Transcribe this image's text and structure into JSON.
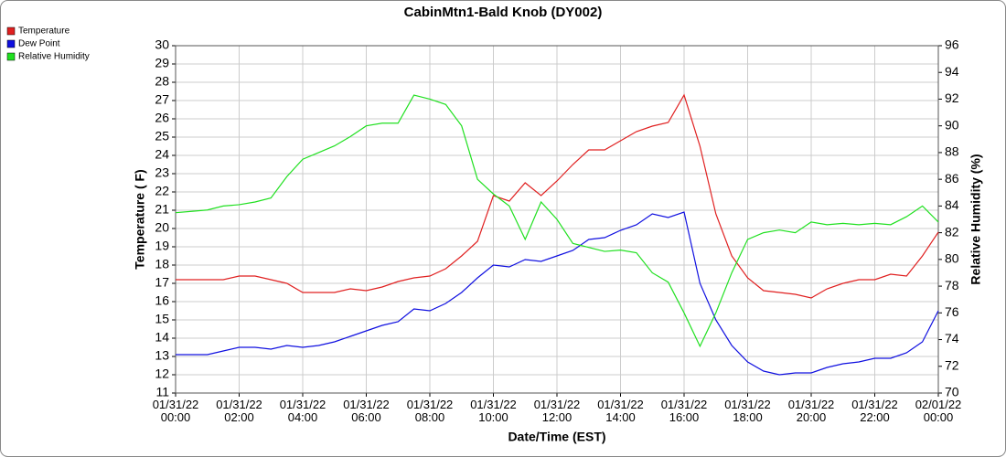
{
  "chart_data": {
    "type": "line",
    "title": "CabinMtn1-Bald Knob (DY002)",
    "x_label": "Date/Time (EST)",
    "y_label": "Temperature ( F)",
    "y2_label": "Relative Humidity (%)",
    "x": [
      0,
      0.5,
      1,
      1.5,
      2,
      2.5,
      3,
      3.5,
      4,
      4.5,
      5,
      5.5,
      6,
      6.5,
      7,
      7.5,
      8,
      8.5,
      9,
      9.5,
      10,
      10.5,
      11,
      11.5,
      12,
      12.5,
      13,
      13.5,
      14,
      14.5,
      15,
      15.5,
      16,
      16.5,
      17,
      17.5,
      18,
      18.5,
      19,
      19.5,
      20,
      20.5,
      21,
      21.5,
      22,
      22.5,
      23,
      23.5,
      24
    ],
    "series": [
      {
        "name": "Temperature",
        "color": "#e02020",
        "values": [
          17.2,
          17.2,
          17.2,
          17.2,
          17.4,
          17.4,
          17.2,
          17.0,
          16.5,
          16.5,
          16.5,
          16.7,
          16.6,
          16.8,
          17.1,
          17.3,
          17.4,
          17.8,
          18.5,
          19.3,
          21.8,
          21.5,
          22.5,
          21.8,
          22.6,
          23.5,
          24.3,
          24.3,
          24.8,
          25.3,
          25.6,
          25.8,
          27.3,
          24.5,
          20.8,
          18.5,
          17.3,
          16.6,
          16.5,
          16.4,
          16.2,
          16.7,
          17.0,
          17.2,
          17.2,
          17.5,
          17.4,
          18.5,
          19.8
        ]
      },
      {
        "name": "Dew Point",
        "color": "#1010e0",
        "values": [
          13.1,
          13.1,
          13.1,
          13.3,
          13.5,
          13.5,
          13.4,
          13.6,
          13.5,
          13.6,
          13.8,
          14.1,
          14.4,
          14.7,
          14.9,
          15.6,
          15.5,
          15.9,
          16.5,
          17.3,
          18.0,
          17.9,
          18.3,
          18.2,
          18.5,
          18.8,
          19.4,
          19.5,
          19.9,
          20.2,
          20.8,
          20.6,
          20.9,
          17.0,
          15.0,
          13.6,
          12.7,
          12.2,
          12.0,
          12.1,
          12.1,
          12.4,
          12.6,
          12.7,
          12.9,
          12.9,
          13.2,
          13.8,
          15.5
        ]
      },
      {
        "name": "Relative Humidity",
        "color": "#20e020",
        "axis": "y2",
        "values": [
          83.5,
          83.6,
          83.7,
          84.0,
          84.1,
          84.3,
          84.6,
          86.2,
          87.5,
          88.0,
          88.5,
          89.2,
          90.0,
          90.2,
          90.2,
          92.3,
          92.0,
          91.6,
          90.0,
          86.0,
          84.9,
          84.0,
          81.5,
          84.3,
          83.0,
          81.2,
          80.9,
          80.6,
          80.7,
          80.5,
          79.0,
          78.3,
          76.0,
          73.5,
          76.0,
          79.0,
          81.5,
          82.0,
          82.2,
          82.0,
          82.8,
          82.6,
          82.7,
          82.6,
          82.7,
          82.6,
          83.2,
          84.0,
          82.8
        ]
      }
    ],
    "xlim": [
      0,
      24
    ],
    "xticks": [
      {
        "value": 0,
        "label": "01/31/22\n00:00"
      },
      {
        "value": 2,
        "label": "01/31/22\n02:00"
      },
      {
        "value": 4,
        "label": "01/31/22\n04:00"
      },
      {
        "value": 6,
        "label": "01/31/22\n06:00"
      },
      {
        "value": 8,
        "label": "01/31/22\n08:00"
      },
      {
        "value": 10,
        "label": "01/31/22\n10:00"
      },
      {
        "value": 12,
        "label": "01/31/22\n12:00"
      },
      {
        "value": 14,
        "label": "01/31/22\n14:00"
      },
      {
        "value": 16,
        "label": "01/31/22\n16:00"
      },
      {
        "value": 18,
        "label": "01/31/22\n18:00"
      },
      {
        "value": 20,
        "label": "01/31/22\n20:00"
      },
      {
        "value": 22,
        "label": "01/31/22\n22:00"
      },
      {
        "value": 24,
        "label": "02/01/22\n00:00"
      }
    ],
    "ylim": [
      11,
      30
    ],
    "yticks": [
      11,
      12,
      13,
      14,
      15,
      16,
      17,
      18,
      19,
      20,
      21,
      22,
      23,
      24,
      25,
      26,
      27,
      28,
      29,
      30
    ],
    "y2lim": [
      70,
      96
    ],
    "y2ticks": [
      70,
      72,
      74,
      76,
      78,
      80,
      82,
      84,
      86,
      88,
      90,
      92,
      94,
      96
    ],
    "grid": true,
    "legend": "top-left"
  }
}
